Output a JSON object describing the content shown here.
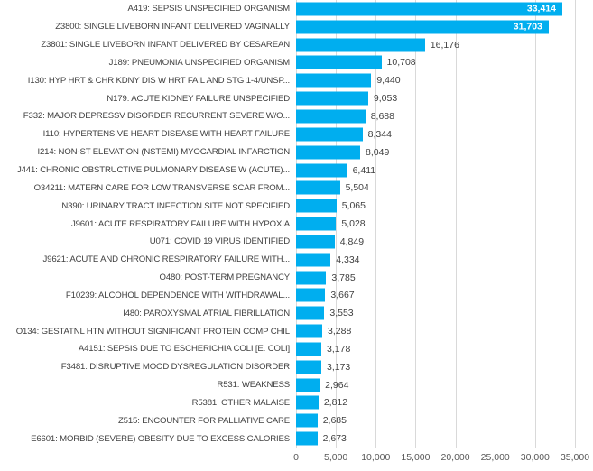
{
  "chart_data": {
    "type": "bar",
    "orientation": "horizontal",
    "title": "",
    "xlabel": "",
    "ylabel": "",
    "categories": [
      "A419: SEPSIS UNSPECIFIED ORGANISM",
      "Z3800: SINGLE LIVEBORN INFANT DELIVERED VAGINALLY",
      "Z3801: SINGLE LIVEBORN INFANT DELIVERED BY CESAREAN",
      "J189: PNEUMONIA UNSPECIFIED ORGANISM",
      "I130: HYP HRT & CHR KDNY DIS W HRT FAIL AND STG 1-4/UNSP...",
      "N179: ACUTE KIDNEY FAILURE UNSPECIFIED",
      "F332: MAJOR DEPRESSV DISORDER RECURRENT SEVERE W/O...",
      "I110: HYPERTENSIVE HEART DISEASE WITH HEART FAILURE",
      "I214: NON-ST ELEVATION (NSTEMI) MYOCARDIAL INFARCTION",
      "J441: CHRONIC OBSTRUCTIVE PULMONARY DISEASE W (ACUTE)...",
      "O34211: MATERN CARE FOR LOW TRANSVERSE SCAR FROM...",
      "N390: URINARY TRACT INFECTION SITE NOT SPECIFIED",
      "J9601: ACUTE RESPIRATORY FAILURE WITH HYPOXIA",
      "U071: COVID 19 VIRUS IDENTIFIED",
      "J9621: ACUTE AND CHRONIC RESPIRATORY FAILURE WITH...",
      "O480: POST-TERM PREGNANCY",
      "F10239: ALCOHOL DEPENDENCE WITH WITHDRAWAL...",
      "I480: PAROXYSMAL ATRIAL FIBRILLATION",
      "O134: GESTATNL HTN WITHOUT SIGNIFICANT PROTEIN COMP CHIL",
      "A4151: SEPSIS DUE TO ESCHERICHIA COLI [E. COLI]",
      "F3481: DISRUPTIVE MOOD DYSREGULATION DISORDER",
      "R531: WEAKNESS",
      "R5381: OTHER MALAISE",
      "Z515: ENCOUNTER FOR PALLIATIVE CARE",
      "E6601: MORBID (SEVERE) OBESITY DUE TO EXCESS CALORIES"
    ],
    "values": [
      33414,
      31703,
      16176,
      10708,
      9440,
      9053,
      8688,
      8344,
      8049,
      6411,
      5504,
      5065,
      5028,
      4849,
      4334,
      3785,
      3667,
      3553,
      3288,
      3178,
      3173,
      2964,
      2812,
      2685,
      2673
    ],
    "value_labels": [
      "33,414",
      "31,703",
      "16,176",
      "10,708",
      "9,440",
      "9,053",
      "8,688",
      "8,344",
      "8,049",
      "6,411",
      "5,504",
      "5,065",
      "5,028",
      "4,849",
      "4,334",
      "3,785",
      "3,667",
      "3,553",
      "3,288",
      "3,178",
      "3,173",
      "2,964",
      "2,812",
      "2,685",
      "2,673"
    ],
    "xlim": [
      0,
      35000
    ],
    "x_ticks": [
      0,
      5000,
      10000,
      15000,
      20000,
      25000,
      30000,
      35000
    ],
    "x_tick_labels": [
      "0",
      "5,000",
      "10,000",
      "15,000",
      "20,000",
      "25,000",
      "30,000",
      "35,000"
    ],
    "grid": "vertical",
    "legend": "none",
    "colors": {
      "bar": "#00AEEF",
      "value_label_outside": "#404040",
      "value_label_inside": "#ffffff",
      "category_label": "#404040",
      "axis_label": "#595959",
      "gridline": "#d9d9d9",
      "background": "#ffffff"
    }
  }
}
